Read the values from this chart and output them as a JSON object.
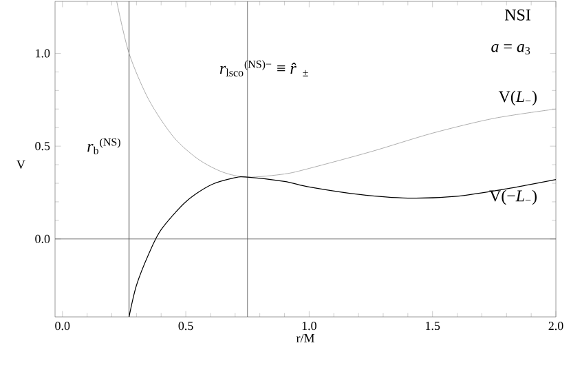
{
  "chart_data": {
    "type": "line",
    "xlabel": "r/M",
    "ylabel": "V",
    "xlim": [
      -0.03,
      2.0
    ],
    "ylim": [
      -0.42,
      1.28
    ],
    "xticks": [
      {
        "value": 0,
        "label": "0.0"
      },
      0.5,
      {
        "value": 1,
        "label": "1.0"
      },
      1.5,
      {
        "value": 2,
        "label": "2.0"
      }
    ],
    "yticks": [
      {
        "value": 0,
        "label": "0.0"
      },
      0.5,
      {
        "value": 1,
        "label": "1.0"
      }
    ],
    "grid": false,
    "series": [
      {
        "name": "V(*L*$_{−}$)",
        "color": "#999999",
        "x": [
          0.22,
          0.27,
          0.35,
          0.45,
          0.55,
          0.65,
          0.75,
          0.9,
          1.0,
          1.25,
          1.5,
          1.75,
          2.0
        ],
        "values": [
          1.28,
          1.0,
          0.75,
          0.55,
          0.43,
          0.36,
          0.333,
          0.35,
          0.38,
          0.47,
          0.57,
          0.65,
          0.7
        ]
      },
      {
        "name": "V(−*L*$_{−}$)",
        "color": "#000000",
        "x": [
          0.27,
          0.3,
          0.35,
          0.4,
          0.5,
          0.6,
          0.7,
          0.75,
          0.9,
          1.0,
          1.2,
          1.4,
          1.6,
          1.8,
          2.0
        ],
        "values": [
          -0.42,
          -0.25,
          -0.08,
          0.05,
          0.2,
          0.29,
          0.33,
          0.333,
          0.31,
          0.28,
          0.24,
          0.22,
          0.23,
          0.27,
          0.32
        ]
      }
    ],
    "ref_lines": [
      {
        "axis": "x",
        "value": 0.27,
        "label": "*r*$_{b}$$^{(NS)}$",
        "color": "#000000"
      },
      {
        "axis": "x",
        "value": 0.75,
        "label": "*r*$_{lsco}$$^{(NS)−}$ ≡ *r̂*$_{±}$",
        "color": "#555555"
      },
      {
        "axis": "y",
        "value": 0,
        "color": "#555555"
      }
    ],
    "annotations": [
      "NSI",
      "*a* = *a*$_{3}$"
    ]
  }
}
